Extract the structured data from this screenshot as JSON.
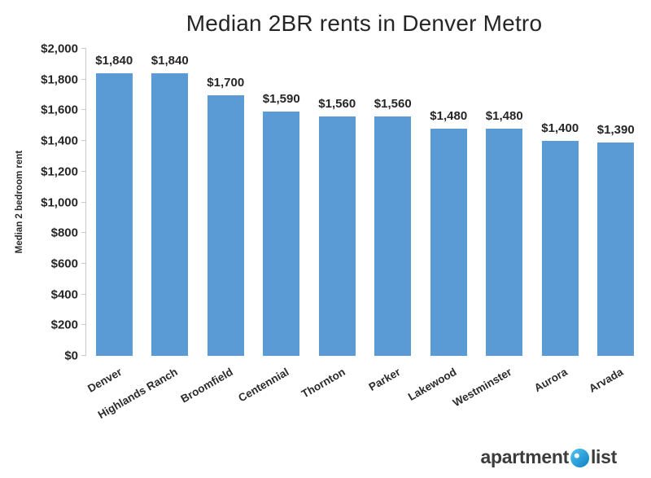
{
  "chart_data": {
    "type": "bar",
    "title": "Median 2BR rents in Denver Metro",
    "ylabel": "Median 2 bedroom rent",
    "xlabel": "",
    "categories": [
      "Denver",
      "Highlands Ranch",
      "Broomfield",
      "Centennial",
      "Thornton",
      "Parker",
      "Lakewood",
      "Westminster",
      "Aurora",
      "Arvada"
    ],
    "values": [
      1840,
      1840,
      1700,
      1590,
      1560,
      1560,
      1480,
      1480,
      1400,
      1390
    ],
    "value_labels": [
      "$1,840",
      "$1,840",
      "$1,700",
      "$1,590",
      "$1,560",
      "$1,560",
      "$1,480",
      "$1,480",
      "$1,400",
      "$1,390"
    ],
    "ylim": [
      0,
      2000
    ],
    "yticks": [
      0,
      200,
      400,
      600,
      800,
      1000,
      1200,
      1400,
      1600,
      1800,
      2000
    ],
    "ytick_labels": [
      "$0",
      "$200",
      "$400",
      "$600",
      "$800",
      "$1,000",
      "$1,200",
      "$1,400",
      "$1,600",
      "$1,800",
      "$2,000"
    ],
    "grid": false,
    "legend_position": "none",
    "bar_color": "#5b9bd5",
    "axis_color": "#c9c9c9"
  },
  "branding": {
    "logo_left": "apartment",
    "logo_right": "list",
    "logo_icon": "apartment-list-pin-icon",
    "logo_color": "#129fd9"
  }
}
